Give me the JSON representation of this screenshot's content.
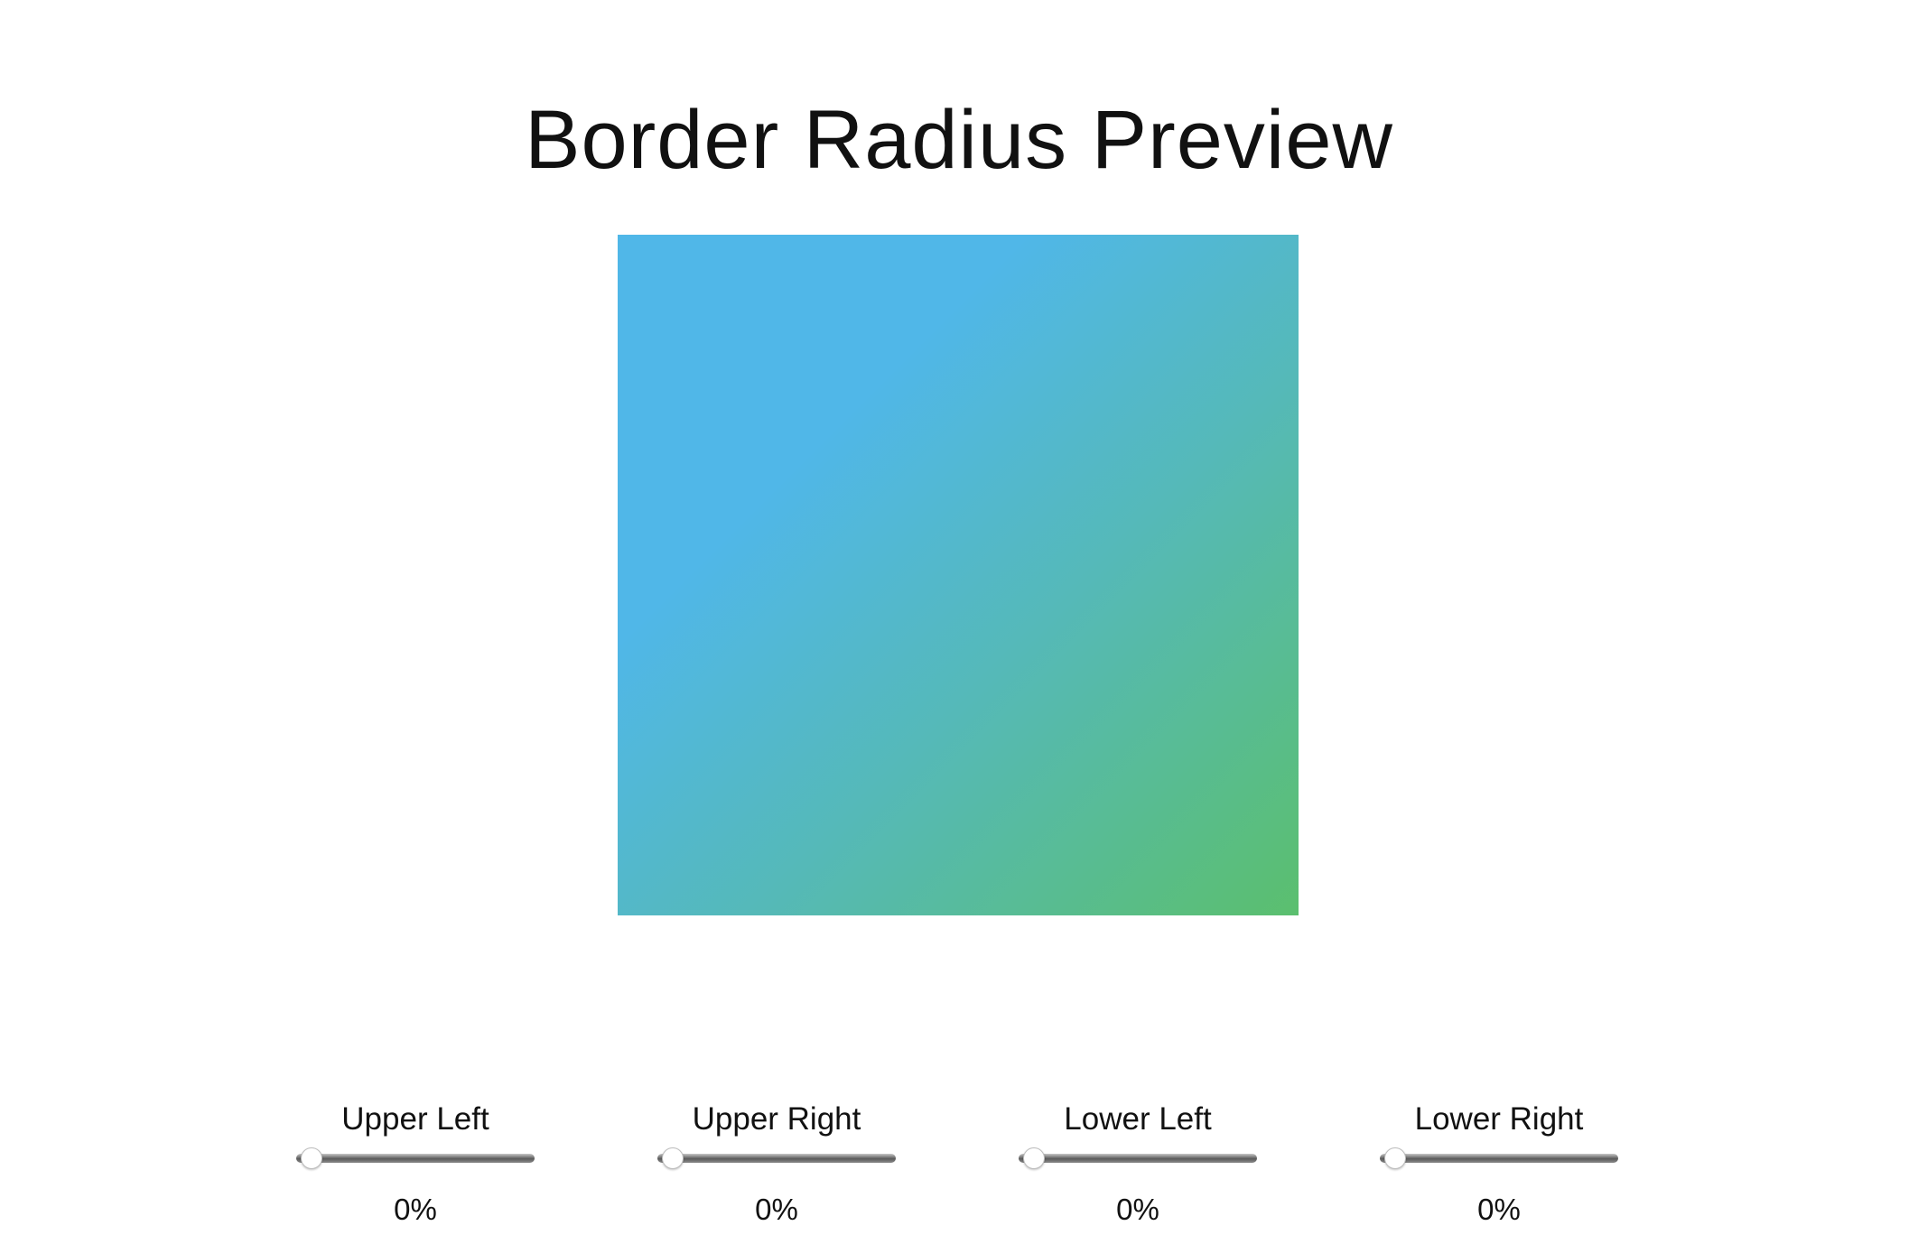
{
  "page": {
    "title": "Border Radius Preview"
  },
  "preview": {
    "gradient_colors": [
      "#50b7e8",
      "#55b9b8",
      "#5bbf6e"
    ]
  },
  "controls": [
    {
      "label": "Upper Left",
      "value": 0,
      "value_text": "0%"
    },
    {
      "label": "Upper Right",
      "value": 0,
      "value_text": "0%"
    },
    {
      "label": "Lower Left",
      "value": 0,
      "value_text": "0%"
    },
    {
      "label": "Lower Right",
      "value": 0,
      "value_text": "0%"
    }
  ]
}
